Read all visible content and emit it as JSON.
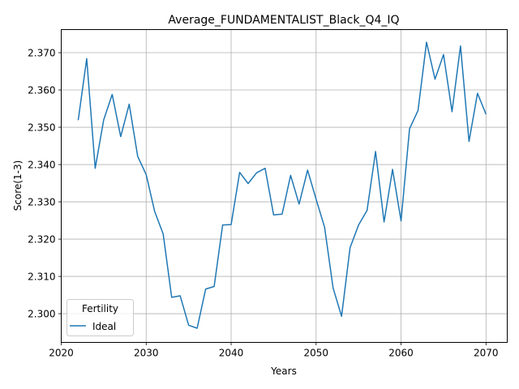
{
  "chart_data": {
    "type": "line",
    "title": "Average_FUNDAMENTALIST_Black_Q4_IQ",
    "xlabel": "Years",
    "ylabel": "Score(1-3)",
    "xlim": [
      2020,
      2072.5
    ],
    "ylim": [
      2.2923,
      2.3762
    ],
    "xticks": [
      2020,
      2030,
      2040,
      2050,
      2060,
      2070
    ],
    "yticks": [
      2.3,
      2.31,
      2.32,
      2.33,
      2.34,
      2.35,
      2.36,
      2.37
    ],
    "grid": true,
    "legend": {
      "title": "Fertility",
      "position": "lower-left"
    },
    "series": [
      {
        "name": "Ideal",
        "color": "#1f77b4",
        "x": [
          2022,
          2023,
          2024,
          2025,
          2026,
          2027,
          2028,
          2029,
          2030,
          2031,
          2032,
          2033,
          2034,
          2035,
          2036,
          2037,
          2038,
          2039,
          2040,
          2041,
          2042,
          2043,
          2044,
          2045,
          2046,
          2047,
          2048,
          2049,
          2050,
          2051,
          2052,
          2053,
          2054,
          2055,
          2056,
          2057,
          2058,
          2059,
          2060,
          2061,
          2062,
          2063,
          2064,
          2065,
          2066,
          2067,
          2068,
          2069,
          2070
        ],
        "y": [
          2.3519,
          2.3684,
          2.339,
          2.352,
          2.3588,
          2.3475,
          2.3562,
          2.3422,
          2.3373,
          2.3274,
          2.3214,
          2.3044,
          2.3048,
          2.2969,
          2.2961,
          2.3066,
          2.3073,
          2.3238,
          2.3239,
          2.3379,
          2.3349,
          2.3378,
          2.339,
          2.3265,
          2.3267,
          2.3371,
          2.3294,
          2.3385,
          2.3307,
          2.3232,
          2.3069,
          2.2993,
          2.3177,
          2.3238,
          2.3277,
          2.3435,
          2.3246,
          2.3387,
          2.3249,
          2.3496,
          2.3545,
          2.3728,
          2.3629,
          2.3695,
          2.3542,
          2.3718,
          2.3462,
          2.3591,
          2.3535
        ]
      }
    ]
  }
}
